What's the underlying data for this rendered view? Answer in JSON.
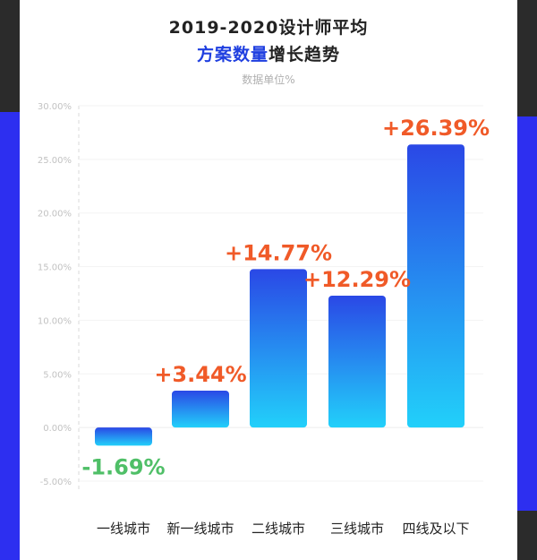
{
  "header": {
    "title_line1": "2019-2020设计师平均",
    "title_line2_highlight": "方案数量",
    "title_line2_rest": "增长趋势",
    "unit_note": "数据单位%"
  },
  "colors": {
    "bar_top": "#2a48e6",
    "bar_bottom": "#22d0fa",
    "positive_label": "#f05a28",
    "negative_label": "#4fbf67",
    "highlight": "#1f3fe0"
  },
  "chart_data": {
    "type": "bar",
    "categories": [
      "一线城市",
      "新一线城市",
      "二线城市",
      "三线城市",
      "四线及以下"
    ],
    "values": [
      -1.69,
      3.44,
      14.77,
      12.29,
      26.39
    ],
    "data_labels": [
      "-1.69%",
      "+3.44%",
      "+14.77%",
      "+12.29%",
      "+26.39%"
    ],
    "y_ticks": [
      30,
      25,
      20,
      15,
      10,
      5,
      0,
      -5
    ],
    "y_tick_labels": [
      "30.00%",
      "25.00%",
      "20.00%",
      "15.00%",
      "10.00%",
      "5.00%",
      "0.00%",
      "-5.00%"
    ],
    "ylim": [
      -5,
      30
    ],
    "grid": true
  }
}
